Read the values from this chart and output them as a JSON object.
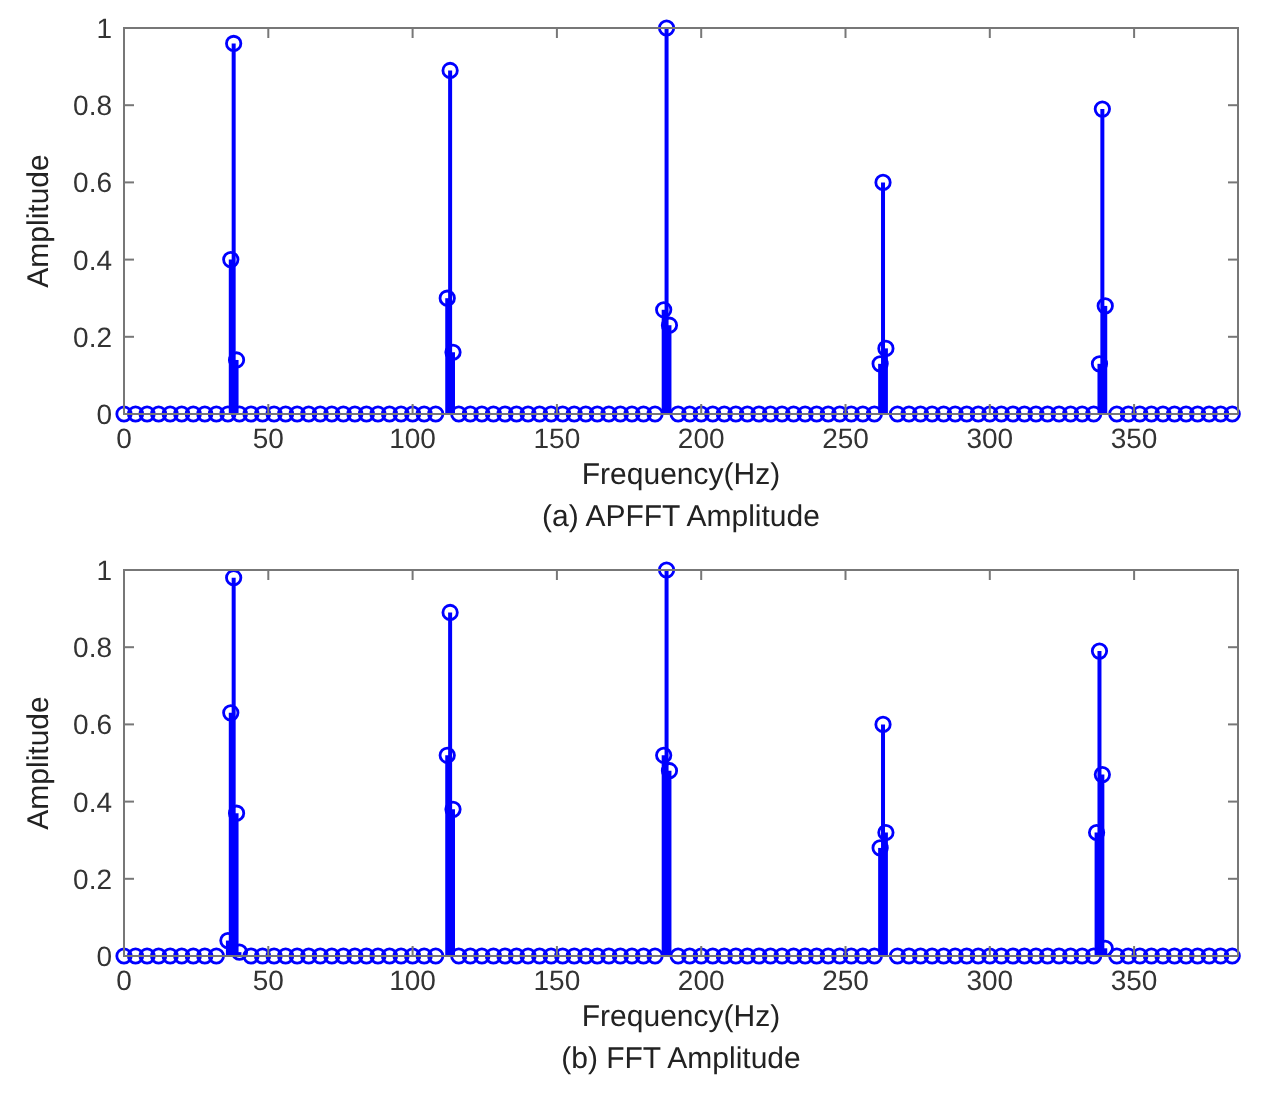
{
  "chart_data": [
    {
      "type": "lollipop",
      "xlabel": "Frequency(Hz)",
      "ylabel": "Amplitude",
      "annotations": [
        "(a) APFFT Amplitude"
      ],
      "xlim": [
        0,
        386
      ],
      "xticks": [
        0,
        50,
        100,
        150,
        200,
        250,
        300,
        350
      ],
      "ylim": [
        0,
        1
      ],
      "yticks": [
        0,
        0.2,
        0.4,
        0.6,
        0.8,
        1
      ],
      "marker": "circle",
      "grid": false,
      "series": [
        {
          "color": "#0000ff",
          "x": [
            0,
            4,
            8,
            12,
            16,
            20,
            24,
            28,
            32,
            36,
            37,
            38,
            39,
            40,
            44,
            48,
            52,
            56,
            60,
            64,
            68,
            72,
            76,
            80,
            84,
            88,
            92,
            96,
            100,
            104,
            108,
            112,
            113,
            114,
            116,
            120,
            124,
            128,
            132,
            136,
            140,
            144,
            148,
            152,
            156,
            160,
            164,
            168,
            172,
            176,
            180,
            184,
            187,
            188,
            189,
            192,
            196,
            200,
            204,
            208,
            212,
            216,
            220,
            224,
            228,
            232,
            236,
            240,
            244,
            248,
            252,
            256,
            260,
            262,
            263,
            264,
            268,
            272,
            276,
            280,
            284,
            288,
            292,
            296,
            300,
            304,
            308,
            312,
            316,
            320,
            324,
            328,
            332,
            336,
            338,
            339,
            340,
            344,
            348,
            352,
            356,
            360,
            364,
            368,
            372,
            376,
            380,
            384
          ],
          "values": [
            0,
            0,
            0,
            0,
            0,
            0,
            0,
            0,
            0,
            0,
            0.4,
            0.96,
            0.14,
            0,
            0,
            0,
            0,
            0,
            0,
            0,
            0,
            0,
            0,
            0,
            0,
            0,
            0,
            0,
            0,
            0,
            0,
            0.3,
            0.89,
            0.16,
            0,
            0,
            0,
            0,
            0,
            0,
            0,
            0,
            0,
            0,
            0,
            0,
            0,
            0,
            0,
            0,
            0,
            0,
            0.27,
            1.0,
            0.23,
            0,
            0,
            0,
            0,
            0,
            0,
            0,
            0,
            0,
            0,
            0,
            0,
            0,
            0,
            0,
            0,
            0,
            0,
            0.13,
            0.6,
            0.17,
            0,
            0,
            0,
            0,
            0,
            0,
            0,
            0,
            0,
            0,
            0,
            0,
            0,
            0,
            0,
            0,
            0,
            0,
            0.13,
            0.79,
            0.28,
            0,
            0,
            0,
            0,
            0,
            0,
            0,
            0,
            0,
            0,
            0
          ]
        }
      ]
    },
    {
      "type": "lollipop",
      "xlabel": "Frequency(Hz)",
      "ylabel": "Amplitude",
      "annotations": [
        "(b) FFT Amplitude"
      ],
      "xlim": [
        0,
        386
      ],
      "xticks": [
        0,
        50,
        100,
        150,
        200,
        250,
        300,
        350
      ],
      "ylim": [
        0,
        1
      ],
      "yticks": [
        0,
        0.2,
        0.4,
        0.6,
        0.8,
        1
      ],
      "marker": "circle",
      "grid": false,
      "series": [
        {
          "color": "#0000ff",
          "x": [
            0,
            4,
            8,
            12,
            16,
            20,
            24,
            28,
            32,
            36,
            37,
            38,
            39,
            40,
            44,
            48,
            52,
            56,
            60,
            64,
            68,
            72,
            76,
            80,
            84,
            88,
            92,
            96,
            100,
            104,
            108,
            112,
            113,
            114,
            116,
            120,
            124,
            128,
            132,
            136,
            140,
            144,
            148,
            152,
            156,
            160,
            164,
            168,
            172,
            176,
            180,
            184,
            187,
            188,
            189,
            192,
            196,
            200,
            204,
            208,
            212,
            216,
            220,
            224,
            228,
            232,
            236,
            240,
            244,
            248,
            252,
            256,
            260,
            262,
            263,
            264,
            268,
            272,
            276,
            280,
            284,
            288,
            292,
            296,
            300,
            304,
            308,
            312,
            316,
            320,
            324,
            328,
            332,
            336,
            337,
            338,
            339,
            340,
            344,
            348,
            352,
            356,
            360,
            364,
            368,
            372,
            376,
            380,
            384
          ],
          "values": [
            0,
            0,
            0,
            0,
            0,
            0,
            0,
            0,
            0,
            0.04,
            0.63,
            0.98,
            0.37,
            0.01,
            0,
            0,
            0,
            0,
            0,
            0,
            0,
            0,
            0,
            0,
            0,
            0,
            0,
            0,
            0,
            0,
            0,
            0.52,
            0.89,
            0.38,
            0,
            0,
            0,
            0,
            0,
            0,
            0,
            0,
            0,
            0,
            0,
            0,
            0,
            0,
            0,
            0,
            0,
            0,
            0.52,
            1.0,
            0.48,
            0,
            0,
            0,
            0,
            0,
            0,
            0,
            0,
            0,
            0,
            0,
            0,
            0,
            0,
            0,
            0,
            0,
            0,
            0.28,
            0.6,
            0.32,
            0,
            0,
            0,
            0,
            0,
            0,
            0,
            0,
            0,
            0,
            0,
            0,
            0,
            0,
            0,
            0,
            0,
            0,
            0.32,
            0.79,
            0.47,
            0.02,
            0,
            0,
            0,
            0,
            0,
            0,
            0,
            0,
            0,
            0,
            0
          ]
        }
      ]
    }
  ]
}
